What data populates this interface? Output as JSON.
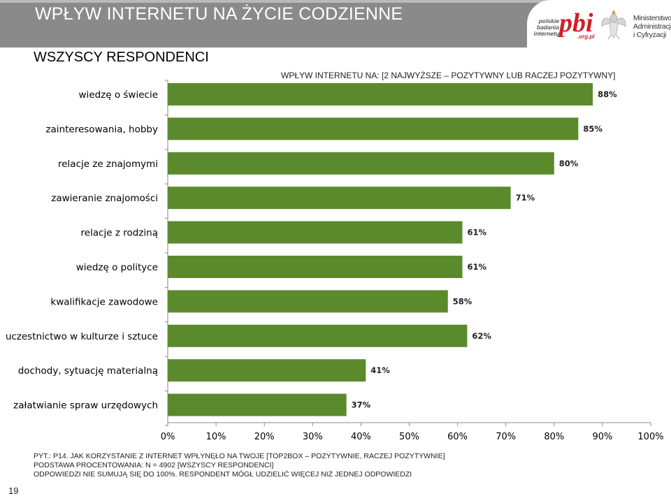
{
  "header": {
    "title": "WPŁYW INTERNETU NA ŻYCIE CODZIENNE",
    "pbi_lines": [
      "polskie",
      "badania",
      "internetu"
    ],
    "pbi_mark": "pbi",
    "pbi_domain": ".org.pl",
    "ministry_lines": [
      "Ministerstwo",
      "Administracji",
      "i Cyfryzacji"
    ]
  },
  "subtitle": "WSZYSCY RESPONDENCI",
  "chart_data": {
    "type": "bar",
    "orientation": "horizontal",
    "title": "WPŁYW INTERNETU NA: [2 NAJWYŻSZE – POZYTYWNY LUB RACZEJ POZYTYWNY]",
    "categories": [
      "wiedzę o świecie",
      "zainteresowania, hobby",
      "relacje ze znajomymi",
      "zawieranie  znajomości",
      "relacje z rodziną",
      "wiedzę o polityce",
      "kwalifikacje zawodowe",
      "uczestnictwo w kulturze i sztuce",
      "dochody, sytuację materialną",
      "załatwianie spraw urzędowych"
    ],
    "values": [
      88,
      85,
      80,
      71,
      61,
      61,
      58,
      62,
      41,
      37
    ],
    "value_labels": [
      "88%",
      "85%",
      "80%",
      "71%",
      "61%",
      "61%",
      "58%",
      "62%",
      "41%",
      "37%"
    ],
    "xlim": [
      0,
      100
    ],
    "x_ticks": [
      "0%",
      "10%",
      "20%",
      "30%",
      "40%",
      "50%",
      "60%",
      "70%",
      "80%",
      "90%",
      "100%"
    ],
    "bar_color": "#5b8a2d",
    "grid": false,
    "legend": "none"
  },
  "footnote": {
    "lines": [
      "PYT.: P14. JAK KORZYSTANIE Z INTERNET WPŁYNĘŁO NA TWOJE [TOP2BOX – POZYTYWNIE, RACZEJ POZYTYWNIE]",
      "PODSTAWA PROCENTOWANIA: N = 4902 [WSZYSCY RESPONDENCI]",
      "ODPOWIEDZI NIE SUMUJĄ SIĘ DO 100%. RESPONDENT MÓGŁ UDZIELIĆ WIĘCEJ NIŻ JEDNEJ ODPOWIEDZI"
    ]
  },
  "page_number": "19"
}
